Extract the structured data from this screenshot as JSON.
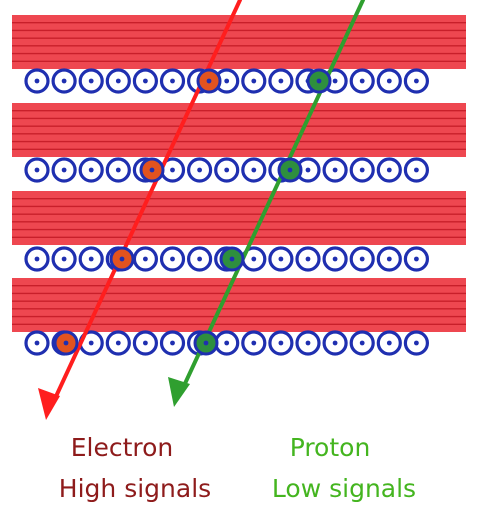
{
  "legend": {
    "electron": {
      "name": "Electron",
      "signal": "High signals",
      "color": "#8e1b1b",
      "track_color": "#ff1e1e",
      "hit_color": "#e2531f"
    },
    "proton": {
      "name": "Proton",
      "signal": "Low signals",
      "color": "#44b51f",
      "track_color": "#2f9f2f",
      "hit_color": "#2e8f3e"
    }
  },
  "colors": {
    "radiator_fill": "#ee4750",
    "radiator_line": "#c81f2a",
    "tube_ring": "#1f2fb0",
    "tube_fill": "#ffffff",
    "tube_dot": "#1f2fb0"
  },
  "detector": {
    "radiator_layers": 4,
    "tube_layers": 4,
    "tubes_per_layer": 15
  }
}
